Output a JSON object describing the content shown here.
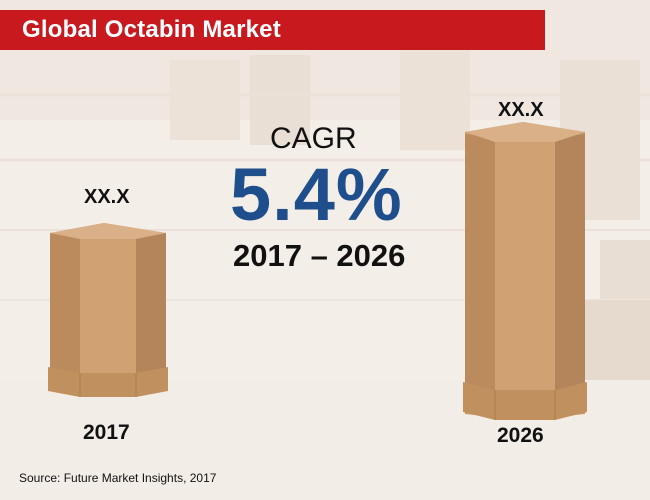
{
  "title": "Global Octabin Market",
  "cagr": {
    "label": "CAGR",
    "value": "5.4%",
    "period": "2017 – 2026"
  },
  "left": {
    "value": "XX.X",
    "year": "2017"
  },
  "right": {
    "value": "XX.X",
    "year": "2026"
  },
  "source": "Source: Future Market Insights, 2017",
  "colors": {
    "title_bar": "#c8191f",
    "cagr_value": "#1f4e8c",
    "box_face": "#c99a6a",
    "box_side": "#b4855a"
  }
}
